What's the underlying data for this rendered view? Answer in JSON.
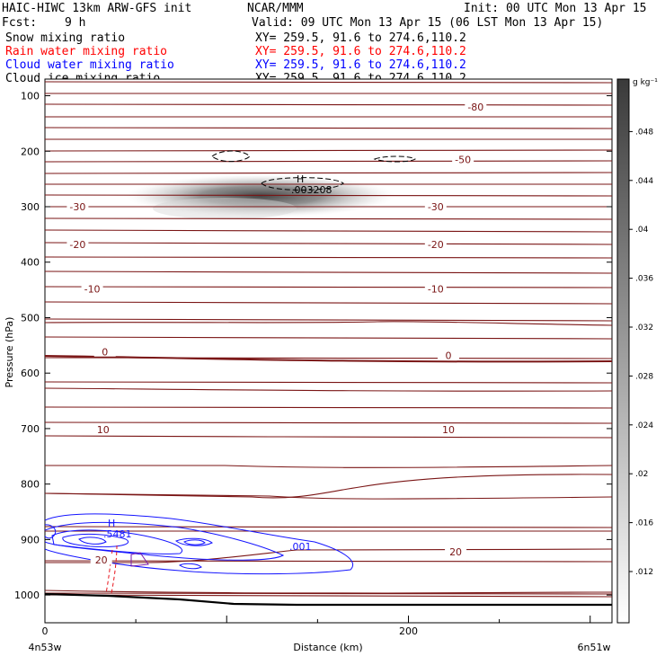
{
  "header": {
    "model": "HAIC-HIWC 13km ARW-GFS init",
    "org": "NCAR/MMM",
    "init": "Init: 00 UTC Mon 13 Apr 15",
    "fcst_label": "Fcst:",
    "fcst_value": "9 h",
    "valid": "Valid: 09 UTC Mon 13 Apr 15 (06 LST Mon 13 Apr 15)"
  },
  "fields": [
    {
      "label": "Snow mixing ratio",
      "xy": "XY= 259.5, 91.6 to 274.6,110.2",
      "color": "#000000"
    },
    {
      "label": "Rain water mixing ratio",
      "xy": "XY= 259.5, 91.6 to 274.6,110.2",
      "color": "#ff0000"
    },
    {
      "label": "Cloud water mixing ratio",
      "xy": "XY= 259.5, 91.6 to 274.6,110.2",
      "color": "#0000ff"
    },
    {
      "label": "Cloud ice mixing ratio",
      "xy": "XY= 259.5, 91.6 to 274.6,110.2",
      "color": "#000000"
    }
  ],
  "chart_data": {
    "type": "cross-section",
    "ylabel": "Pressure (hPa)",
    "xlabel": "Distance (km)",
    "xlim": [
      0,
      312
    ],
    "ylim": [
      1050,
      70
    ],
    "yticks": [
      100,
      200,
      300,
      400,
      500,
      600,
      700,
      800,
      900,
      1000
    ],
    "xticks": [
      0,
      200
    ],
    "x_start_label": "4n53w",
    "x_end_label": "6n51w",
    "colorbar": {
      "unit": "g kg⁻¹",
      "ticks": [
        ".012",
        ".016",
        ".02",
        ".024",
        ".028",
        ".032",
        ".036",
        ".04",
        ".044",
        ".048"
      ]
    },
    "temperature_labels": [
      {
        "text": "-80",
        "x": 237,
        "p": 120
      },
      {
        "text": "-50",
        "x": 230,
        "p": 215
      },
      {
        "text": "-30",
        "x": 18,
        "p": 300
      },
      {
        "text": "-30",
        "x": 215,
        "p": 300
      },
      {
        "text": "-20",
        "x": 18,
        "p": 368
      },
      {
        "text": "-20",
        "x": 215,
        "p": 368
      },
      {
        "text": "-10",
        "x": 26,
        "p": 448
      },
      {
        "text": "-10",
        "x": 215,
        "p": 448
      },
      {
        "text": "0",
        "x": 33,
        "p": 562
      },
      {
        "text": "0",
        "x": 222,
        "p": 568
      },
      {
        "text": "10",
        "x": 32,
        "p": 702
      },
      {
        "text": "10",
        "x": 222,
        "p": 702
      },
      {
        "text": "20",
        "x": 31,
        "p": 937
      },
      {
        "text": "20",
        "x": 226,
        "p": 922
      }
    ],
    "cloud_ice_annotation": {
      "text": ".003208",
      "marker": "H",
      "x": 145,
      "p": 255
    },
    "cloud_water_annotation": {
      "text": ".5481",
      "marker": "H",
      "x": 33,
      "p": 880
    },
    "cloud_water_label": {
      "text": ".001",
      "x": 140,
      "p": 915
    },
    "snow_max_p": 270,
    "snow_max_x": 128,
    "terrain_p": [
      995,
      1015
    ]
  }
}
